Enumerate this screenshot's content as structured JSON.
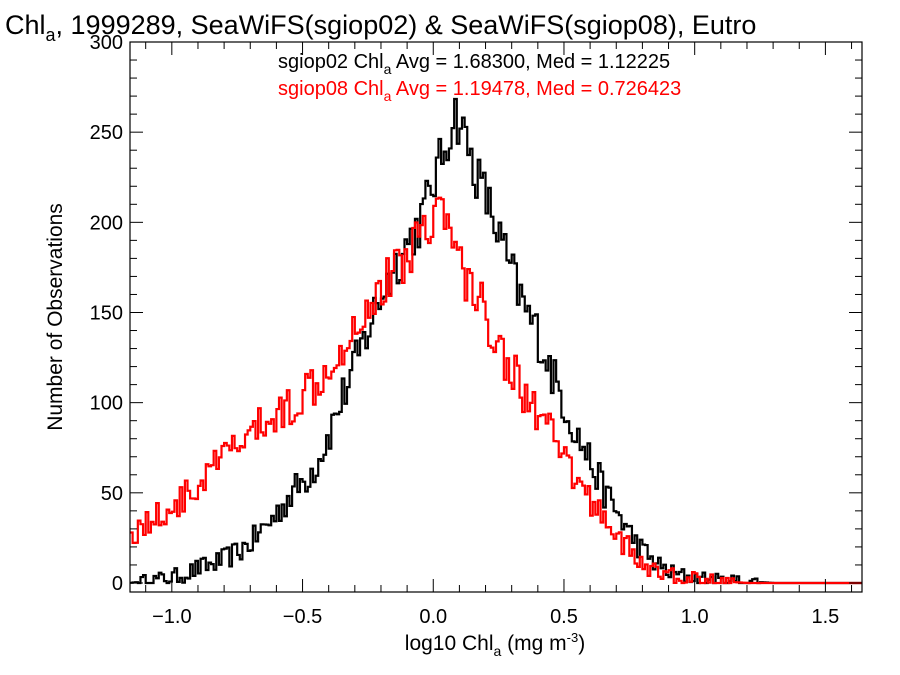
{
  "chart_data": {
    "type": "histogram",
    "title": {
      "base": "Chl",
      "sub": "a",
      "rest": ", 1999289, SeaWiFS(sgiop02) & SeaWiFS(sgiop08), Eutro"
    },
    "xlabel": {
      "base": "log10 Chl",
      "sub": "a",
      "rest": " (mg m",
      "sup": "-3",
      "close": ")"
    },
    "ylabel": "Number of Observations",
    "xlim": [
      -1.16,
      1.64
    ],
    "ylim": [
      -5,
      300
    ],
    "x_ticks": [
      -1.0,
      -0.5,
      0.0,
      0.5,
      1.0,
      1.5
    ],
    "x_tick_labels": [
      "−1.0",
      "−0.5",
      "0.0",
      "0.5",
      "1.0",
      "1.5"
    ],
    "y_ticks": [
      0,
      50,
      100,
      150,
      200,
      250,
      300
    ],
    "y_tick_labels": [
      "0",
      "50",
      "100",
      "150",
      "200",
      "250",
      "300"
    ],
    "annotations": [
      {
        "prefix": "sgiop02 Chl",
        "sub": "a",
        "text": " Avg = 1.68300, Med = 1.12225",
        "color": "#000000"
      },
      {
        "prefix": "sgiop08 Chl",
        "sub": "a",
        "text": " Avg = 1.19478, Med = 0.726423",
        "color": "#ff0000"
      }
    ],
    "series": [
      {
        "name": "sgiop02",
        "color": "#000000",
        "points": [
          [
            -1.16,
            0
          ],
          [
            -1.1,
            1
          ],
          [
            -1.05,
            2
          ],
          [
            -1.0,
            3
          ],
          [
            -0.95,
            5
          ],
          [
            -0.9,
            8
          ],
          [
            -0.85,
            10
          ],
          [
            -0.8,
            13
          ],
          [
            -0.75,
            17
          ],
          [
            -0.7,
            22
          ],
          [
            -0.65,
            30
          ],
          [
            -0.6,
            38
          ],
          [
            -0.55,
            48
          ],
          [
            -0.5,
            56
          ],
          [
            -0.45,
            65
          ],
          [
            -0.4,
            82
          ],
          [
            -0.35,
            102
          ],
          [
            -0.3,
            120
          ],
          [
            -0.25,
            140
          ],
          [
            -0.2,
            160
          ],
          [
            -0.15,
            175
          ],
          [
            -0.1,
            188
          ],
          [
            -0.05,
            200
          ],
          [
            0.0,
            222
          ],
          [
            0.03,
            235
          ],
          [
            0.06,
            248
          ],
          [
            0.08,
            262
          ],
          [
            0.1,
            255
          ],
          [
            0.13,
            245
          ],
          [
            0.15,
            232
          ],
          [
            0.2,
            215
          ],
          [
            0.25,
            193
          ],
          [
            0.3,
            172
          ],
          [
            0.35,
            152
          ],
          [
            0.4,
            138
          ],
          [
            0.45,
            118
          ],
          [
            0.5,
            100
          ],
          [
            0.55,
            82
          ],
          [
            0.6,
            68
          ],
          [
            0.65,
            52
          ],
          [
            0.7,
            40
          ],
          [
            0.75,
            28
          ],
          [
            0.8,
            18
          ],
          [
            0.85,
            11
          ],
          [
            0.9,
            6
          ],
          [
            0.95,
            4
          ],
          [
            1.0,
            3
          ],
          [
            1.05,
            2
          ],
          [
            1.1,
            1
          ],
          [
            1.2,
            1
          ],
          [
            1.3,
            0
          ],
          [
            1.64,
            0
          ]
        ]
      },
      {
        "name": "sgiop08",
        "color": "#ff0000",
        "points": [
          [
            -1.16,
            27
          ],
          [
            -1.1,
            33
          ],
          [
            -1.05,
            37
          ],
          [
            -1.0,
            42
          ],
          [
            -0.95,
            47
          ],
          [
            -0.9,
            53
          ],
          [
            -0.85,
            62
          ],
          [
            -0.8,
            70
          ],
          [
            -0.75,
            76
          ],
          [
            -0.7,
            82
          ],
          [
            -0.65,
            88
          ],
          [
            -0.6,
            92
          ],
          [
            -0.55,
            98
          ],
          [
            -0.5,
            105
          ],
          [
            -0.45,
            112
          ],
          [
            -0.4,
            122
          ],
          [
            -0.35,
            132
          ],
          [
            -0.3,
            143
          ],
          [
            -0.25,
            155
          ],
          [
            -0.2,
            163
          ],
          [
            -0.15,
            172
          ],
          [
            -0.1,
            182
          ],
          [
            -0.05,
            195
          ],
          [
            0.0,
            205
          ],
          [
            0.03,
            210
          ],
          [
            0.05,
            198
          ],
          [
            0.08,
            188
          ],
          [
            0.1,
            178
          ],
          [
            0.15,
            162
          ],
          [
            0.2,
            150
          ],
          [
            0.25,
            133
          ],
          [
            0.3,
            118
          ],
          [
            0.35,
            105
          ],
          [
            0.4,
            94
          ],
          [
            0.45,
            82
          ],
          [
            0.5,
            68
          ],
          [
            0.55,
            56
          ],
          [
            0.6,
            46
          ],
          [
            0.65,
            38
          ],
          [
            0.7,
            28
          ],
          [
            0.75,
            18
          ],
          [
            0.8,
            10
          ],
          [
            0.85,
            6
          ],
          [
            0.9,
            4
          ],
          [
            0.95,
            3
          ],
          [
            1.0,
            2
          ],
          [
            1.05,
            1
          ],
          [
            1.1,
            1
          ],
          [
            1.2,
            0
          ],
          [
            1.64,
            0
          ]
        ]
      }
    ]
  }
}
